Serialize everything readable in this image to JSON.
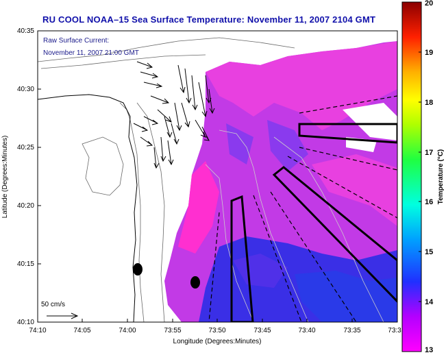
{
  "title": "RU COOL  NOAA–15  Sea Surface Temperature:  November 11, 2007 2104 GMT",
  "legend": {
    "line1": "Raw Surface Current:",
    "line2": "November 11, 2007 21:00 GMT",
    "scale_label": "50 cm/s"
  },
  "axes": {
    "xlabel": "Longitude (Degrees:Minutes)",
    "ylabel": "Latitude (Degrees:Minutes)",
    "x_ticks": [
      "74:10",
      "74:05",
      "74:00",
      "73:55",
      "73:50",
      "73:45",
      "73:40",
      "73:35",
      "73:3"
    ],
    "y_ticks": [
      "40:35",
      "40:30",
      "40:25",
      "40:20",
      "40:15",
      "40:10"
    ]
  },
  "colorbar": {
    "title": "Temperature (°C)",
    "ticks": [
      "20",
      "19",
      "18",
      "17",
      "16",
      "15",
      "14",
      "13"
    ],
    "min": 13,
    "max": 20
  },
  "colors": {
    "title": "#1010aa",
    "sst_warm": "#ff2fd0",
    "sst_mid": "#c23ae6",
    "sst_cool": "#3a2fe6"
  },
  "markers": [
    "black-dot",
    "black-dot"
  ],
  "icons": [
    "current-vector-arrows",
    "scale-arrow-icon"
  ]
}
